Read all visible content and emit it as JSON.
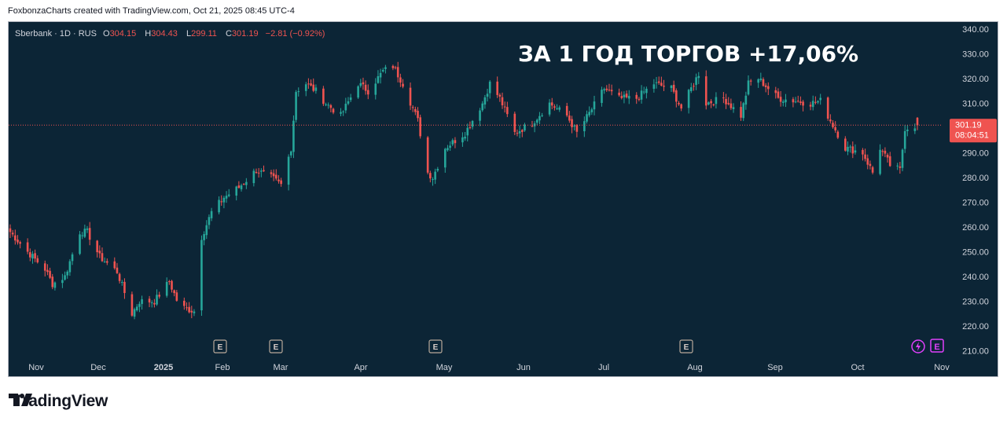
{
  "header": {
    "attribution": "FoxbonzaCharts created with TradingView.com, Oct 21, 2025 08:45 UTC-4"
  },
  "footer": {
    "brand": "TradingView"
  },
  "legend": {
    "symbol": "Sberbank · 1D · RUS",
    "o_label": "O",
    "o_value": "304.15",
    "h_label": "H",
    "h_value": "304.43",
    "l_label": "L",
    "l_value": "299.11",
    "c_label": "C",
    "c_value": "301.19",
    "change": "−2.81 (−0.92%)"
  },
  "headline": "ЗА 1 ГОД ТОРГОВ +17,06%",
  "price_label": {
    "price": "301.19",
    "countdown": "08:04:51"
  },
  "colors": {
    "background": "#0c2536",
    "up": "#26a69a",
    "down": "#ef5350",
    "text": "#d1d4dc",
    "price_label": "#ef5350"
  },
  "chart_data": {
    "type": "candlestick",
    "symbol": "Sberbank",
    "interval": "1D",
    "ylim": [
      205,
      345
    ],
    "y_ticks": [
      "340.00",
      "330.00",
      "320.00",
      "310.00",
      "300.00",
      "290.00",
      "280.00",
      "270.00",
      "260.00",
      "250.00",
      "240.00",
      "230.00",
      "220.00",
      "210.00"
    ],
    "x_ticks": [
      "Nov",
      "Dec",
      "2025",
      "Feb",
      "Mar",
      "Apr",
      "May",
      "Jun",
      "Jul",
      "Aug",
      "Sep",
      "Oct",
      "Nov"
    ],
    "last_price": 301.19,
    "earnings_markers": [
      "Feb",
      "Mar",
      "May",
      "Aug",
      "Oct"
    ],
    "anchors": [
      {
        "date": "Oct 21 2024",
        "close": 258
      },
      {
        "date": "Oct 28 2024",
        "close": 250
      },
      {
        "date": "Nov 4 2024",
        "close": 243
      },
      {
        "date": "Nov 7 2024",
        "close": 237
      },
      {
        "date": "Nov 12 2024",
        "close": 240
      },
      {
        "date": "Nov 18 2024",
        "close": 258
      },
      {
        "date": "Nov 21 2024",
        "close": 258
      },
      {
        "date": "Nov 26 2024",
        "close": 248
      },
      {
        "date": "Dec 3 2024",
        "close": 242
      },
      {
        "date": "Dec 9 2024",
        "close": 225
      },
      {
        "date": "Dec 12 2024",
        "close": 230
      },
      {
        "date": "Dec 18 2024",
        "close": 230
      },
      {
        "date": "Dec 24 2024",
        "close": 238
      },
      {
        "date": "Dec 28 2024",
        "close": 228
      },
      {
        "date": "Jan 3 2025",
        "close": 226
      },
      {
        "date": "Jan 6 2025",
        "close": 256
      },
      {
        "date": "Jan 10 2025",
        "close": 266
      },
      {
        "date": "Jan 15 2025",
        "close": 272
      },
      {
        "date": "Jan 21 2025",
        "close": 276
      },
      {
        "date": "Jan 28 2025",
        "close": 283
      },
      {
        "date": "Feb 3 2025",
        "close": 280
      },
      {
        "date": "Feb 7 2025",
        "close": 277
      },
      {
        "date": "Feb 11 2025",
        "close": 292
      },
      {
        "date": "Feb 13 2025",
        "close": 315
      },
      {
        "date": "Feb 17 2025",
        "close": 318
      },
      {
        "date": "Feb 21 2025",
        "close": 315
      },
      {
        "date": "Feb 25 2025",
        "close": 310
      },
      {
        "date": "Mar 3 2025",
        "close": 305
      },
      {
        "date": "Mar 10 2025",
        "close": 318
      },
      {
        "date": "Mar 14 2025",
        "close": 315
      },
      {
        "date": "Mar 20 2025",
        "close": 323
      },
      {
        "date": "Mar 24 2025",
        "close": 325
      },
      {
        "date": "Mar 28 2025",
        "close": 318
      },
      {
        "date": "Apr 3 2025",
        "close": 303
      },
      {
        "date": "Apr 7 2025",
        "close": 282
      },
      {
        "date": "Apr 9 2025",
        "close": 280
      },
      {
        "date": "Apr 14 2025",
        "close": 292
      },
      {
        "date": "Apr 22 2025",
        "close": 298
      },
      {
        "date": "Apr 29 2025",
        "close": 310
      },
      {
        "date": "May 2 2025",
        "close": 318
      },
      {
        "date": "May 6 2025",
        "close": 312
      },
      {
        "date": "May 12 2025",
        "close": 298
      },
      {
        "date": "May 19 2025",
        "close": 302
      },
      {
        "date": "May 26 2025",
        "close": 310
      },
      {
        "date": "Jun 2 2025",
        "close": 305
      },
      {
        "date": "Jun 6 2025",
        "close": 298
      },
      {
        "date": "Jun 11 2025",
        "close": 306
      },
      {
        "date": "Jun 17 2025",
        "close": 316
      },
      {
        "date": "Jun 23 2025",
        "close": 312
      },
      {
        "date": "Jun 30 2025",
        "close": 312
      },
      {
        "date": "Jul 7 2025",
        "close": 318
      },
      {
        "date": "Jul 14 2025",
        "close": 316
      },
      {
        "date": "Jul 18 2025",
        "close": 308
      },
      {
        "date": "Jul 22 2025",
        "close": 316
      },
      {
        "date": "Jul 25 2025",
        "close": 322
      },
      {
        "date": "Jul 28 2025",
        "close": 310
      },
      {
        "date": "Aug 4 2025",
        "close": 312
      },
      {
        "date": "Aug 11 2025",
        "close": 305
      },
      {
        "date": "Aug 14 2025",
        "close": 318
      },
      {
        "date": "Aug 18 2025",
        "close": 320
      },
      {
        "date": "Aug 22 2025",
        "close": 316
      },
      {
        "date": "Aug 26 2025",
        "close": 312
      },
      {
        "date": "Sep 2 2025",
        "close": 311
      },
      {
        "date": "Sep 8 2025",
        "close": 310
      },
      {
        "date": "Sep 12 2025",
        "close": 311
      },
      {
        "date": "Sep 16 2025",
        "close": 303
      },
      {
        "date": "Sep 22 2025",
        "close": 292
      },
      {
        "date": "Sep 29 2025",
        "close": 290
      },
      {
        "date": "Oct 3 2025",
        "close": 282
      },
      {
        "date": "Oct 6 2025",
        "close": 292
      },
      {
        "date": "Oct 10 2025",
        "close": 285
      },
      {
        "date": "Oct 14 2025",
        "close": 283
      },
      {
        "date": "Oct 16 2025",
        "close": 300
      },
      {
        "date": "Oct 21 2025",
        "close": 301.19
      }
    ]
  }
}
